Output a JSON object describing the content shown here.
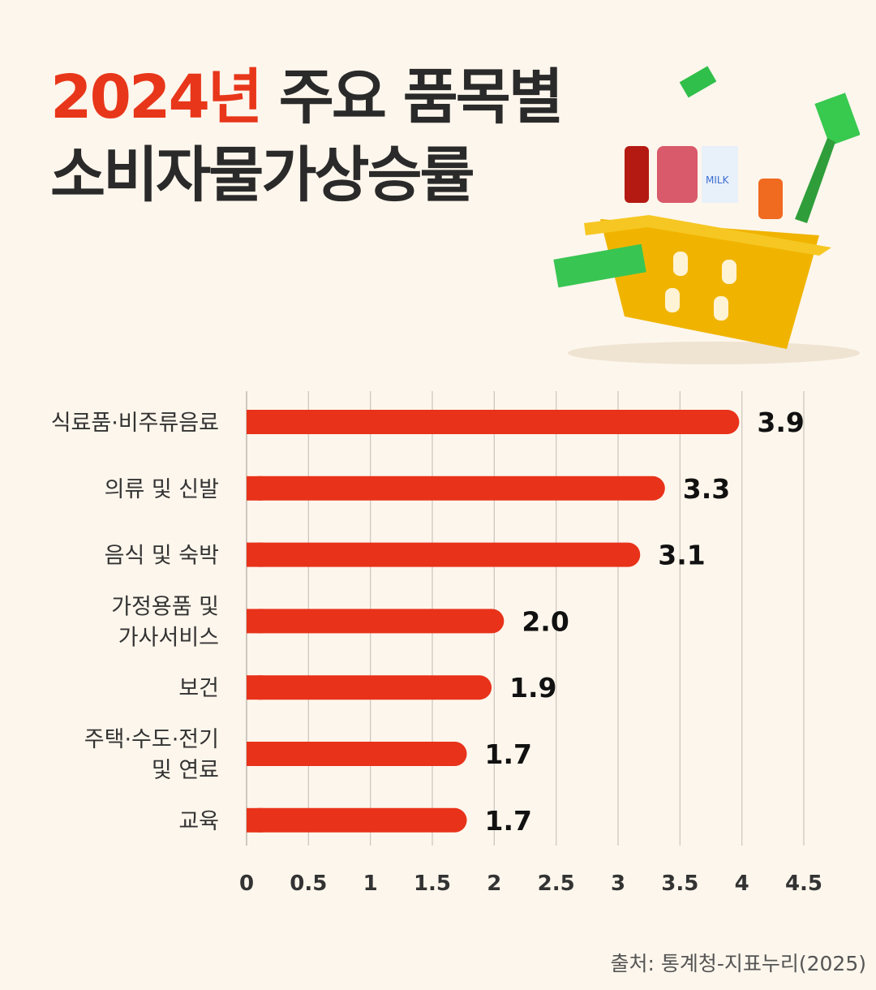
{
  "title": {
    "accent": "2024년",
    "line1_rest": " 주요 품목별",
    "line2": "소비자물가상승률"
  },
  "source": "출처: 통계청-지표누리(2025)",
  "colors": {
    "bar": "#e8321a",
    "accent": "#e8361a",
    "background": "#fdf6ec",
    "grid": "#cfc8bf"
  },
  "chart_data": {
    "type": "bar",
    "orientation": "horizontal",
    "categories": [
      "식료품·비주류음료",
      "의류 및 신발",
      "음식 및 숙박",
      "가정용품 및\n가사서비스",
      "보건",
      "주택·수도·전기\n및 연료",
      "교육"
    ],
    "values": [
      3.9,
      3.3,
      3.1,
      2.0,
      1.9,
      1.7,
      1.7
    ],
    "value_labels": [
      "3.9",
      "3.3",
      "3.1",
      "2.0",
      "1.9",
      "1.7",
      "1.7"
    ],
    "xlim": [
      0,
      4.5
    ],
    "x_ticks": [
      "0",
      "0.5",
      "1",
      "1.5",
      "2",
      "2.5",
      "3",
      "3.5",
      "4",
      "4.5"
    ],
    "grid": "vertical",
    "title": "2024년 주요 품목별 소비자물가상승률"
  },
  "illustration": {
    "basket_label": "MILK"
  }
}
